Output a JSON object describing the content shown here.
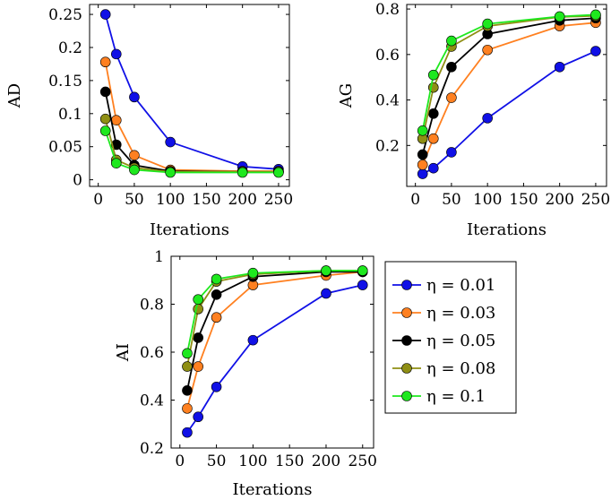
{
  "chart_data": [
    {
      "type": "line",
      "xlabel": "Iterations",
      "ylabel": "AD",
      "x": [
        10,
        25,
        50,
        100,
        200,
        250
      ],
      "xticks": [
        0,
        50,
        100,
        150,
        200,
        250
      ],
      "yticks": [
        0,
        0.05,
        0.1,
        0.15,
        0.2,
        0.25
      ],
      "ytick_labels": [
        "0",
        "0.05",
        "0.1",
        "0.15",
        "0.2",
        "0.25"
      ],
      "xlim": [
        -12,
        265
      ],
      "ylim": [
        -0.01,
        0.265
      ],
      "series": [
        {
          "key": "s1",
          "values": [
            0.25,
            0.19,
            0.125,
            0.057,
            0.02,
            0.016
          ]
        },
        {
          "key": "s2",
          "values": [
            0.178,
            0.09,
            0.037,
            0.015,
            0.013,
            0.013
          ]
        },
        {
          "key": "s3",
          "values": [
            0.133,
            0.053,
            0.022,
            0.013,
            0.012,
            0.012
          ]
        },
        {
          "key": "s4",
          "values": [
            0.092,
            0.03,
            0.018,
            0.012,
            0.012,
            0.012
          ]
        },
        {
          "key": "s5",
          "values": [
            0.074,
            0.025,
            0.015,
            0.011,
            0.011,
            0.011
          ]
        }
      ]
    },
    {
      "type": "line",
      "xlabel": "Iterations",
      "ylabel": "AG",
      "x": [
        10,
        25,
        50,
        100,
        200,
        250
      ],
      "xticks": [
        0,
        50,
        100,
        150,
        200,
        250
      ],
      "yticks": [
        0.2,
        0.4,
        0.6,
        0.8
      ],
      "ytick_labels": [
        "0.2",
        "0.4",
        "0.6",
        "0.8"
      ],
      "xlim": [
        -12,
        265
      ],
      "ylim": [
        0.02,
        0.82
      ],
      "series": [
        {
          "key": "s1",
          "values": [
            0.075,
            0.1,
            0.17,
            0.32,
            0.545,
            0.615
          ]
        },
        {
          "key": "s2",
          "values": [
            0.115,
            0.23,
            0.41,
            0.62,
            0.725,
            0.74
          ]
        },
        {
          "key": "s3",
          "values": [
            0.16,
            0.34,
            0.545,
            0.69,
            0.75,
            0.76
          ]
        },
        {
          "key": "s4",
          "values": [
            0.23,
            0.455,
            0.635,
            0.725,
            0.765,
            0.77
          ]
        },
        {
          "key": "s5",
          "values": [
            0.265,
            0.51,
            0.66,
            0.735,
            0.767,
            0.775
          ]
        }
      ]
    },
    {
      "type": "line",
      "xlabel": "Iterations",
      "ylabel": "AI",
      "x": [
        10,
        25,
        50,
        100,
        200,
        250
      ],
      "xticks": [
        0,
        50,
        100,
        150,
        200,
        250
      ],
      "yticks": [
        0.2,
        0.4,
        0.6,
        0.8,
        1
      ],
      "ytick_labels": [
        "0.2",
        "0.4",
        "0.6",
        "0.8",
        "1"
      ],
      "xlim": [
        -12,
        265
      ],
      "ylim": [
        0.2,
        1.0
      ],
      "series": [
        {
          "key": "s1",
          "values": [
            0.265,
            0.33,
            0.455,
            0.65,
            0.845,
            0.88
          ]
        },
        {
          "key": "s2",
          "values": [
            0.365,
            0.54,
            0.745,
            0.88,
            0.92,
            0.935
          ]
        },
        {
          "key": "s3",
          "values": [
            0.44,
            0.66,
            0.84,
            0.915,
            0.935,
            0.935
          ]
        },
        {
          "key": "s4",
          "values": [
            0.54,
            0.78,
            0.895,
            0.925,
            0.94,
            0.94
          ]
        },
        {
          "key": "s5",
          "values": [
            0.595,
            0.82,
            0.905,
            0.93,
            0.94,
            0.94
          ]
        }
      ]
    }
  ],
  "legend": {
    "placement": "right of bottom chart",
    "entries": [
      {
        "key": "s1",
        "label": "η = 0.01",
        "color": "#1010e6"
      },
      {
        "key": "s2",
        "label": "η = 0.03",
        "color": "#ff8020"
      },
      {
        "key": "s3",
        "label": "η = 0.05",
        "color": "#000000"
      },
      {
        "key": "s4",
        "label": "η = 0.08",
        "color": "#8f8f14"
      },
      {
        "key": "s5",
        "label": "η = 0.1",
        "color": "#1ee81e"
      }
    ]
  }
}
